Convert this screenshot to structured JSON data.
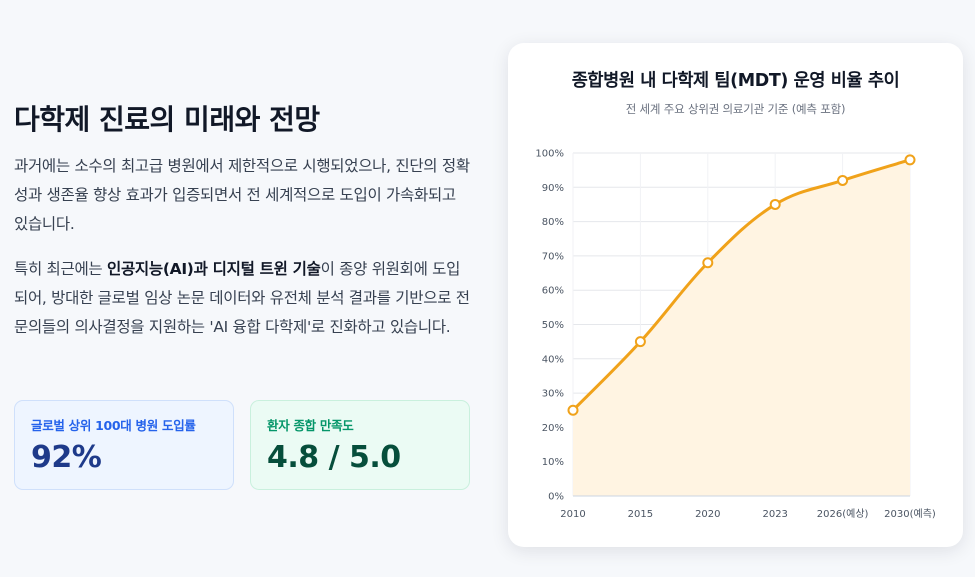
{
  "left": {
    "heading": "다학제 진료의 미래와 전망",
    "para1": "과거에는 소수의 최고급 병원에서 제한적으로 시행되었으나, 진단의 정확성과 생존율 향상 효과가 입증되면서 전 세계적으로 도입이 가속화되고 있습니다.",
    "para2_a": "특히 최근에는 ",
    "para2_bold": "인공지능(AI)과 디지털 트윈 기술",
    "para2_b": "이 종양 위원회에 도입되어, 방대한 글로벌 임상 논문 데이터와 유전체 분석 결과를 기반으로 전문의들의 의사결정을 지원하는 'AI 융합 다학제'로 진화하고 있습니다."
  },
  "cards": [
    {
      "label": "글로벌 상위 100대 병원 도입률",
      "value": "92%"
    },
    {
      "label": "환자 종합 만족도",
      "value": "4.8 / 5.0"
    }
  ],
  "chart_data": {
    "type": "area",
    "title": "종합병원 내 다학제 팀(MDT) 운영 비율 추이",
    "subtitle": "전 세계 주요 상위권 의료기관 기준 (예측 포함)",
    "categories": [
      "2010",
      "2015",
      "2020",
      "2023",
      "2026(예상)",
      "2030(예측)"
    ],
    "values": [
      25,
      45,
      68,
      85,
      92,
      98
    ],
    "ylim": [
      0,
      100
    ],
    "yticks": [
      "0%",
      "10%",
      "20%",
      "30%",
      "40%",
      "50%",
      "60%",
      "70%",
      "80%",
      "90%",
      "100%"
    ],
    "grid": true,
    "colors": {
      "line": "#f0a21a",
      "fill": "#fff4e2",
      "grid": "#e5e7eb"
    }
  }
}
